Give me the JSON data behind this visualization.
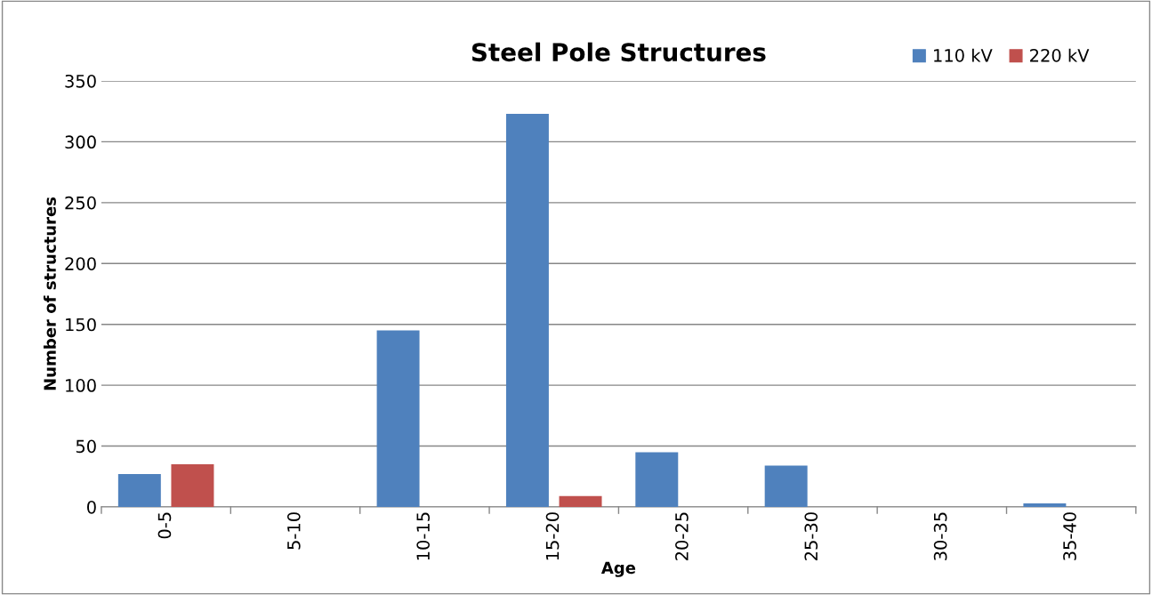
{
  "chart_data": {
    "type": "bar",
    "title": "Steel Pole Structures",
    "xlabel": "Age",
    "ylabel": "Number of structures",
    "categories": [
      "0-5",
      "5-10",
      "10-15",
      "15-20",
      "20-25",
      "25-30",
      "30-35",
      "35-40"
    ],
    "series": [
      {
        "name": "110 kV",
        "color": "#4f81bd",
        "values": [
          27,
          0,
          145,
          323,
          45,
          34,
          0,
          3
        ]
      },
      {
        "name": "220 kV",
        "color": "#c0504d",
        "values": [
          35,
          0,
          0,
          9,
          0,
          0,
          0,
          0
        ]
      }
    ],
    "ylim": [
      0,
      350
    ],
    "yticks": [
      0,
      50,
      100,
      150,
      200,
      250,
      300,
      350
    ],
    "grid": "y",
    "legend": "top right"
  }
}
